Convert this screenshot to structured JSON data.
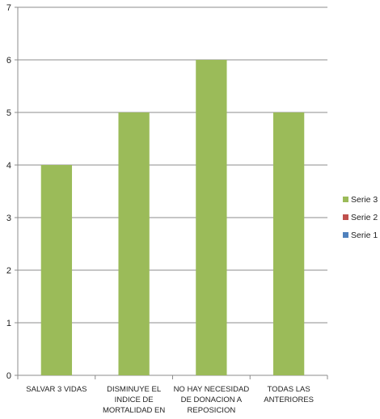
{
  "chart_data": {
    "type": "bar",
    "categories": [
      [
        "SALVAR 3 VIDAS"
      ],
      [
        "DISMINUYE EL",
        "INDICE DE",
        "MORTALIDAD EN"
      ],
      [
        "NO HAY NECESIDAD",
        "DE DONACION A",
        "REPOSICION"
      ],
      [
        "TODAS LAS",
        "ANTERIORES"
      ]
    ],
    "series": [
      {
        "name": "Serie 3",
        "values": [
          4,
          5,
          6,
          5
        ],
        "color": "#9BBB59"
      },
      {
        "name": "Serie 2",
        "values": [
          0,
          0,
          0,
          0
        ],
        "color": "#C0504D"
      },
      {
        "name": "Serie 1",
        "values": [
          0,
          0,
          0,
          0
        ],
        "color": "#4F81BD"
      }
    ],
    "ylim": [
      0,
      7
    ],
    "yticks": [
      0,
      1,
      2,
      3,
      4,
      5,
      6,
      7
    ],
    "grid": true,
    "legend": "right",
    "title": "",
    "xlabel": "",
    "ylabel": ""
  }
}
